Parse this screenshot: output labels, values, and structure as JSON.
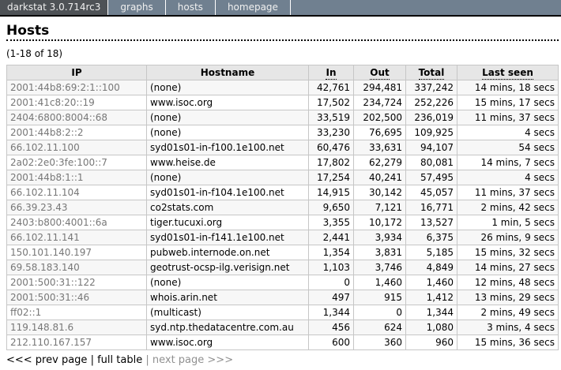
{
  "nav": {
    "brand": "darkstat 3.0.714rc3",
    "tabs": [
      {
        "label": "graphs"
      },
      {
        "label": "hosts"
      },
      {
        "label": "homepage"
      }
    ]
  },
  "page": {
    "title": "Hosts",
    "range_label": "(1-18 of 18)"
  },
  "table": {
    "columns": [
      {
        "label": "IP",
        "sortable": false
      },
      {
        "label": "Hostname",
        "sortable": false
      },
      {
        "label": "In",
        "sortable": true
      },
      {
        "label": "Out",
        "sortable": true
      },
      {
        "label": "Total",
        "sortable": true
      },
      {
        "label": "Last seen",
        "sortable": true
      }
    ],
    "rows": [
      {
        "ip": "2001:44b8:69:2:1::100",
        "hostname": "(none)",
        "in": "42,761",
        "out": "294,481",
        "total": "337,242",
        "last_seen": "14 mins, 18 secs"
      },
      {
        "ip": "2001:41c8:20::19",
        "hostname": "www.isoc.org",
        "in": "17,502",
        "out": "234,724",
        "total": "252,226",
        "last_seen": "15 mins, 17 secs"
      },
      {
        "ip": "2404:6800:8004::68",
        "hostname": "(none)",
        "in": "33,519",
        "out": "202,500",
        "total": "236,019",
        "last_seen": "11 mins, 37 secs"
      },
      {
        "ip": "2001:44b8:2::2",
        "hostname": "(none)",
        "in": "33,230",
        "out": "76,695",
        "total": "109,925",
        "last_seen": "4 secs"
      },
      {
        "ip": "66.102.11.100",
        "hostname": "syd01s01-in-f100.1e100.net",
        "in": "60,476",
        "out": "33,631",
        "total": "94,107",
        "last_seen": "54 secs"
      },
      {
        "ip": "2a02:2e0:3fe:100::7",
        "hostname": "www.heise.de",
        "in": "17,802",
        "out": "62,279",
        "total": "80,081",
        "last_seen": "14 mins, 7 secs"
      },
      {
        "ip": "2001:44b8:1::1",
        "hostname": "(none)",
        "in": "17,254",
        "out": "40,241",
        "total": "57,495",
        "last_seen": "4 secs"
      },
      {
        "ip": "66.102.11.104",
        "hostname": "syd01s01-in-f104.1e100.net",
        "in": "14,915",
        "out": "30,142",
        "total": "45,057",
        "last_seen": "11 mins, 37 secs"
      },
      {
        "ip": "66.39.23.43",
        "hostname": "co2stats.com",
        "in": "9,650",
        "out": "7,121",
        "total": "16,771",
        "last_seen": "2 mins, 42 secs"
      },
      {
        "ip": "2403:b800:4001::6a",
        "hostname": "tiger.tucuxi.org",
        "in": "3,355",
        "out": "10,172",
        "total": "13,527",
        "last_seen": "1 min, 5 secs"
      },
      {
        "ip": "66.102.11.141",
        "hostname": "syd01s01-in-f141.1e100.net",
        "in": "2,441",
        "out": "3,934",
        "total": "6,375",
        "last_seen": "26 mins, 9 secs"
      },
      {
        "ip": "150.101.140.197",
        "hostname": "pubweb.internode.on.net",
        "in": "1,354",
        "out": "3,831",
        "total": "5,185",
        "last_seen": "15 mins, 32 secs"
      },
      {
        "ip": "69.58.183.140",
        "hostname": "geotrust-ocsp-ilg.verisign.net",
        "in": "1,103",
        "out": "3,746",
        "total": "4,849",
        "last_seen": "14 mins, 27 secs"
      },
      {
        "ip": "2001:500:31::122",
        "hostname": "(none)",
        "in": "0",
        "out": "1,460",
        "total": "1,460",
        "last_seen": "12 mins, 48 secs"
      },
      {
        "ip": "2001:500:31::46",
        "hostname": "whois.arin.net",
        "in": "497",
        "out": "915",
        "total": "1,412",
        "last_seen": "13 mins, 29 secs"
      },
      {
        "ip": "ff02::1",
        "hostname": "(multicast)",
        "in": "1,344",
        "out": "0",
        "total": "1,344",
        "last_seen": "2 mins, 49 secs"
      },
      {
        "ip": "119.148.81.6",
        "hostname": "syd.ntp.thedatacentre.com.au",
        "in": "456",
        "out": "624",
        "total": "1,080",
        "last_seen": "3 mins, 4 secs"
      },
      {
        "ip": "212.110.167.157",
        "hostname": "www.isoc.org",
        "in": "600",
        "out": "360",
        "total": "960",
        "last_seen": "15 mins, 36 secs"
      }
    ]
  },
  "pagination": {
    "prev_label": "<<< prev page",
    "full_label": "full table",
    "next_label": "next page >>>",
    "separator": "|"
  },
  "colors": {
    "nav_bg": "#708090",
    "nav_brand_bg": "#4e5256",
    "nav_border": "#000000",
    "header_row_bg": "#e6e6e6",
    "row_alt_bg": "#f7f7f7",
    "cell_border": "#c6c6c6",
    "ip_text": "#777777",
    "disabled_link": "#909090"
  }
}
